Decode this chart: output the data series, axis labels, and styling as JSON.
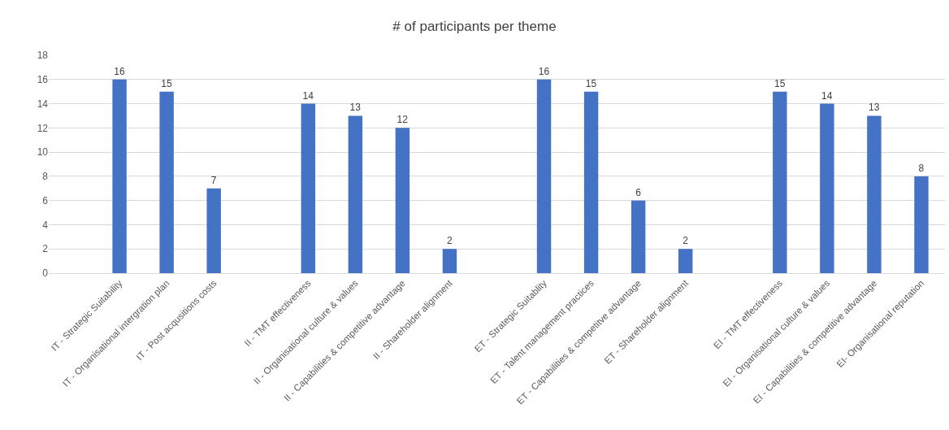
{
  "chart_data": {
    "type": "bar",
    "title": "# of participants per theme",
    "categories": [
      null,
      "IT - Strategic Suitability",
      "IT - Organisational intergration plan",
      "IT - Post acqusitions costs",
      null,
      "II - TMT effectiveness",
      "II - Organisational culture & values",
      "II - Capabilities & competitive advantage",
      "II - Shareholder alignment",
      null,
      "ET - Strategic Suitablity",
      "ET - Talent management practices",
      "ET - Capabilities & competitve advantage",
      "ET - Shareholder alignment",
      null,
      "EI - TMT effectiveness",
      "EI - Organisational culture & values",
      "EI - Capabilities & competitive advantage",
      "EI- Organisational reputation"
    ],
    "values": [
      null,
      16,
      15,
      7,
      null,
      14,
      13,
      12,
      2,
      null,
      16,
      15,
      6,
      2,
      null,
      15,
      14,
      13,
      8
    ],
    "color": "#4472c4",
    "ylim": [
      0,
      18
    ],
    "yticks": [
      0,
      2,
      4,
      6,
      8,
      10,
      12,
      14,
      16,
      18
    ],
    "grid": "y",
    "data_labels": true
  }
}
